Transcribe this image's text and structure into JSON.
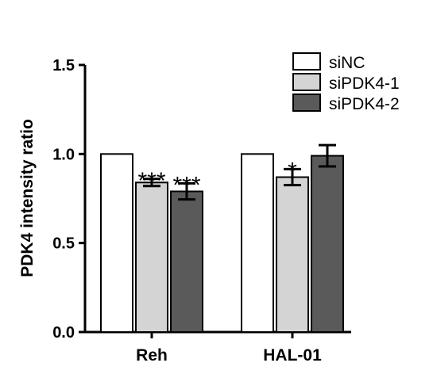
{
  "chart_data": {
    "type": "bar",
    "title": "",
    "xlabel": "",
    "ylabel": "PDK4 intensity ratio",
    "ylim": [
      0,
      1.5
    ],
    "yticks": [
      "0.0",
      "0.5",
      "1.0",
      "1.5"
    ],
    "grid": false,
    "legend_position": "top-right",
    "categories": [
      "Reh",
      "HAL-01"
    ],
    "series": [
      {
        "name": "siNC",
        "color": "#ffffff",
        "values": [
          1.0,
          1.0
        ],
        "errors": [
          0,
          0
        ],
        "significance": [
          "",
          ""
        ]
      },
      {
        "name": "siPDK4-1",
        "color": "#d4d4d4",
        "values": [
          0.84,
          0.87
        ],
        "errors": [
          0.02,
          0.045
        ],
        "significance": [
          "***",
          "*"
        ]
      },
      {
        "name": "siPDK4-2",
        "color": "#5a5a5a",
        "values": [
          0.79,
          0.99
        ],
        "errors": [
          0.045,
          0.06
        ],
        "significance": [
          "***",
          ""
        ]
      }
    ]
  }
}
